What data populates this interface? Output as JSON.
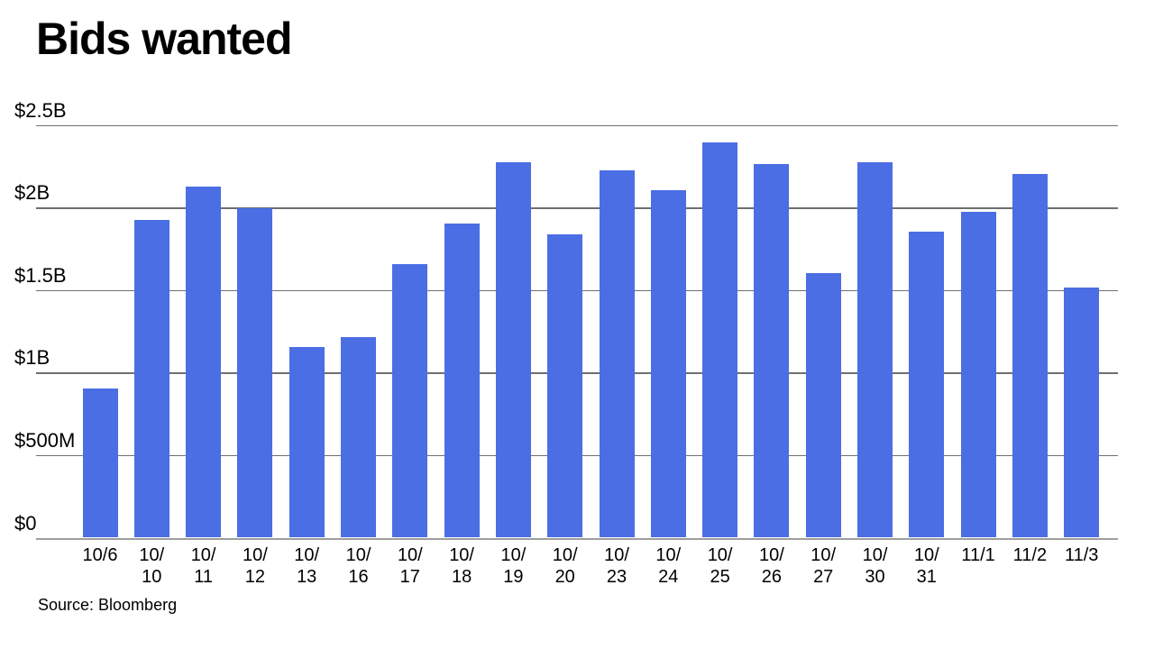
{
  "title": "Bids wanted",
  "source": "Source: Bloomberg",
  "colors": {
    "bar": "#4b6ee4",
    "gridline": "#6f6f6f",
    "baseline": "#9e9e9e",
    "text": "#000000",
    "background": "#ffffff"
  },
  "chart_data": {
    "type": "bar",
    "title": "Bids wanted",
    "categories": [
      "10/6",
      "10/10",
      "10/11",
      "10/12",
      "10/13",
      "10/16",
      "10/17",
      "10/18",
      "10/19",
      "10/20",
      "10/23",
      "10/24",
      "10/25",
      "10/26",
      "10/27",
      "10/30",
      "10/31",
      "11/1",
      "11/2",
      "11/3"
    ],
    "values": [
      0.91,
      1.93,
      2.13,
      2.0,
      1.16,
      1.22,
      1.66,
      1.91,
      2.28,
      1.84,
      2.23,
      2.11,
      2.4,
      2.27,
      1.61,
      2.28,
      1.86,
      1.98,
      2.21,
      1.52
    ],
    "values_unit": "billions of USD",
    "xlabel": "",
    "ylabel": "",
    "ylim": [
      0,
      2.5
    ],
    "yticks": {
      "values": [
        0,
        0.5,
        1,
        1.5,
        2,
        2.5
      ],
      "labels": [
        "$0",
        "$500M",
        "$1B",
        "$1.5B",
        "$2B",
        "$2.5B"
      ]
    },
    "grid": true,
    "legend": false,
    "source": "Source: Bloomberg"
  }
}
